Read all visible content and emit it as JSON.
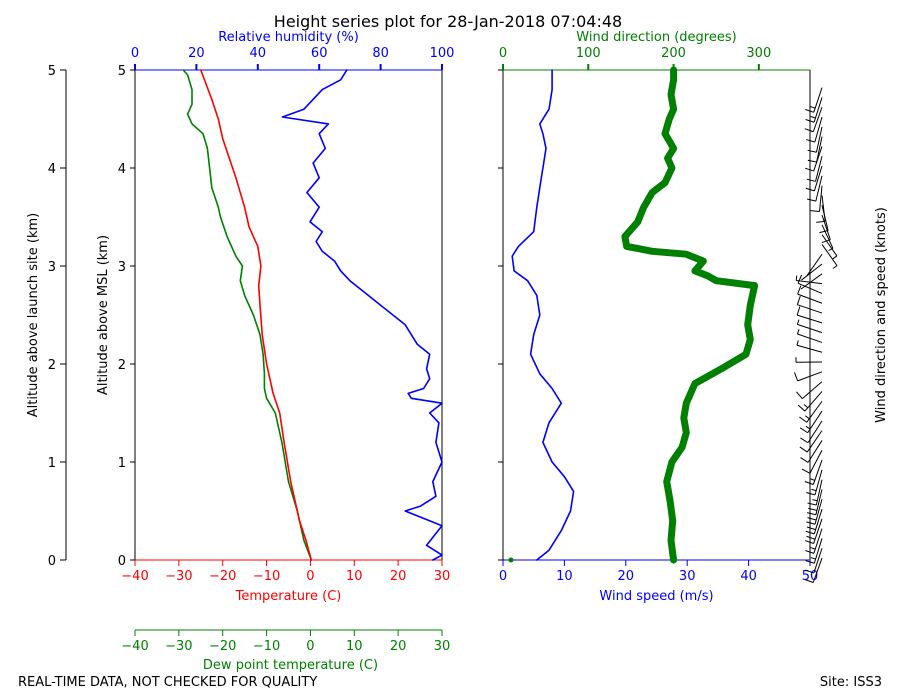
{
  "title": "Height series plot for 28-Jan-2018 07:04:48",
  "footer_left": "REAL-TIME DATA, NOT CHECKED FOR QUALITY",
  "footer_right": "Site: ISS3",
  "colors": {
    "temperature": "#ff0000",
    "dewpoint": "#008000",
    "rh": "#0000ff",
    "wspd": "#0000ff",
    "wdir": "#008000",
    "axis": "#000000"
  },
  "chart_data": [
    {
      "type": "line",
      "name": "thermo-panel",
      "ylabel_outer": "Altitude above launch site (km)",
      "ylabel": "Altitude above MSL (km)",
      "ylim": [
        0,
        5
      ],
      "yticks": [
        "0",
        "1",
        "2",
        "3",
        "4",
        "5"
      ],
      "bottom_axis": {
        "label": "Temperature (C)",
        "lim": [
          -40,
          30
        ],
        "ticks": [
          "−40",
          "−30",
          "−20",
          "−10",
          "0",
          "10",
          "20",
          "30"
        ]
      },
      "bottom_axis2": {
        "label": "Dew point temperature (C)",
        "lim": [
          -40,
          30
        ],
        "ticks": [
          "−40",
          "−30",
          "−20",
          "−10",
          "0",
          "10",
          "20",
          "30"
        ]
      },
      "top_axis": {
        "label": "Relative humidity (%)",
        "lim": [
          0,
          100
        ],
        "ticks": [
          "0",
          "20",
          "40",
          "60",
          "80",
          "100"
        ]
      },
      "series": [
        {
          "name": "Temperature",
          "axis": "bottom",
          "points": [
            [
              0.2,
              0
            ],
            [
              -1,
              0.2
            ],
            [
              -2.5,
              0.4
            ],
            [
              -4.5,
              0.8
            ],
            [
              -6,
              1.2
            ],
            [
              -7,
              1.5
            ],
            [
              -8.5,
              1.7
            ],
            [
              -10,
              2.0
            ],
            [
              -11,
              2.3
            ],
            [
              -11.5,
              2.6
            ],
            [
              -11.8,
              2.8
            ],
            [
              -11.3,
              3.0
            ],
            [
              -12,
              3.2
            ],
            [
              -14,
              3.4
            ],
            [
              -15,
              3.6
            ],
            [
              -17,
              3.9
            ],
            [
              -18.5,
              4.1
            ],
            [
              -20,
              4.3
            ],
            [
              -21,
              4.5
            ],
            [
              -22.5,
              4.7
            ],
            [
              -25,
              5.0
            ]
          ]
        },
        {
          "name": "Dew point",
          "axis": "bottom2",
          "points": [
            [
              0.2,
              0
            ],
            [
              -1.5,
              0.2
            ],
            [
              -3,
              0.5
            ],
            [
              -5,
              0.8
            ],
            [
              -6.5,
              1.2
            ],
            [
              -8,
              1.5
            ],
            [
              -10,
              1.65
            ],
            [
              -10.5,
              1.75
            ],
            [
              -10.5,
              1.9
            ],
            [
              -10.8,
              2.1
            ],
            [
              -11.5,
              2.3
            ],
            [
              -13,
              2.5
            ],
            [
              -15,
              2.7
            ],
            [
              -16,
              2.85
            ],
            [
              -15.5,
              3.0
            ],
            [
              -17,
              3.1
            ],
            [
              -19,
              3.3
            ],
            [
              -20.5,
              3.5
            ],
            [
              -21,
              3.6
            ],
            [
              -22.5,
              3.8
            ],
            [
              -23,
              4.0
            ],
            [
              -23.5,
              4.2
            ],
            [
              -24.5,
              4.35
            ],
            [
              -27,
              4.45
            ],
            [
              -28,
              4.55
            ],
            [
              -27,
              4.65
            ],
            [
              -27,
              4.8
            ],
            [
              -28,
              4.95
            ],
            [
              -29,
              5.0
            ]
          ]
        },
        {
          "name": "Relative humidity",
          "axis": "top",
          "points": [
            [
              97,
              0
            ],
            [
              100,
              0.05
            ],
            [
              95,
              0.15
            ],
            [
              100,
              0.35
            ],
            [
              92,
              0.45
            ],
            [
              88,
              0.5
            ],
            [
              93,
              0.55
            ],
            [
              98,
              0.65
            ],
            [
              97,
              0.8
            ],
            [
              100,
              1.0
            ],
            [
              98,
              1.2
            ],
            [
              99,
              1.4
            ],
            [
              96,
              1.5
            ],
            [
              100,
              1.6
            ],
            [
              90,
              1.65
            ],
            [
              89,
              1.7
            ],
            [
              94,
              1.75
            ],
            [
              96,
              1.85
            ],
            [
              95,
              1.95
            ],
            [
              96,
              2.1
            ],
            [
              92,
              2.2
            ],
            [
              88,
              2.4
            ],
            [
              80,
              2.6
            ],
            [
              76,
              2.7
            ],
            [
              70,
              2.85
            ],
            [
              67,
              2.95
            ],
            [
              65,
              3.05
            ],
            [
              61,
              3.15
            ],
            [
              59,
              3.25
            ],
            [
              61,
              3.35
            ],
            [
              57,
              3.45
            ],
            [
              60,
              3.6
            ],
            [
              56,
              3.75
            ],
            [
              60,
              3.9
            ],
            [
              58,
              4.05
            ],
            [
              62,
              4.2
            ],
            [
              60,
              4.35
            ],
            [
              63,
              4.45
            ],
            [
              48,
              4.52
            ],
            [
              55,
              4.6
            ],
            [
              58,
              4.7
            ],
            [
              61,
              4.8
            ],
            [
              67,
              4.9
            ],
            [
              69,
              5.0
            ]
          ]
        }
      ]
    },
    {
      "type": "line",
      "name": "wind-panel",
      "ylabel_right": "Wind direction and speed (knots)",
      "ylim": [
        0,
        5
      ],
      "bottom_axis": {
        "label": "Wind speed (m/s)",
        "lim": [
          0,
          50
        ],
        "ticks": [
          "0",
          "10",
          "20",
          "30",
          "40",
          "50"
        ]
      },
      "top_axis": {
        "label": "Wind direction (degrees)",
        "lim": [
          0,
          360
        ],
        "ticks": [
          "0",
          "100",
          "200",
          "300"
        ]
      },
      "series": [
        {
          "name": "Wind speed",
          "axis": "bottom",
          "points": [
            [
              5.5,
              0
            ],
            [
              7.5,
              0.1
            ],
            [
              9.5,
              0.3
            ],
            [
              11,
              0.5
            ],
            [
              11.5,
              0.7
            ],
            [
              10,
              0.85
            ],
            [
              8,
              1.0
            ],
            [
              6.5,
              1.2
            ],
            [
              7.5,
              1.4
            ],
            [
              9.5,
              1.6
            ],
            [
              8,
              1.75
            ],
            [
              6,
              1.9
            ],
            [
              4.5,
              2.1
            ],
            [
              5,
              2.3
            ],
            [
              6,
              2.5
            ],
            [
              5.5,
              2.7
            ],
            [
              4,
              2.85
            ],
            [
              1.8,
              2.95
            ],
            [
              1.5,
              3.1
            ],
            [
              2.5,
              3.2
            ],
            [
              5,
              3.35
            ],
            [
              5.5,
              3.6
            ],
            [
              6,
              3.8
            ],
            [
              6.5,
              4.0
            ],
            [
              7,
              4.2
            ],
            [
              6.5,
              4.35
            ],
            [
              6,
              4.45
            ],
            [
              7.5,
              4.6
            ],
            [
              8,
              4.8
            ],
            [
              8,
              5.0
            ]
          ]
        },
        {
          "name": "Wind direction",
          "axis": "top",
          "points": [
            [
              200,
              0
            ],
            [
              197,
              0.2
            ],
            [
              199,
              0.4
            ],
            [
              196,
              0.6
            ],
            [
              192,
              0.8
            ],
            [
              198,
              1.0
            ],
            [
              210,
              1.15
            ],
            [
              215,
              1.3
            ],
            [
              212,
              1.45
            ],
            [
              215,
              1.6
            ],
            [
              225,
              1.8
            ],
            [
              260,
              1.97
            ],
            [
              285,
              2.1
            ],
            [
              290,
              2.25
            ],
            [
              287,
              2.4
            ],
            [
              290,
              2.6
            ],
            [
              295,
              2.8
            ],
            [
              250,
              2.85
            ],
            [
              240,
              2.9
            ],
            [
              225,
              2.95
            ],
            [
              235,
              3.05
            ],
            [
              215,
              3.12
            ],
            [
              175,
              3.15
            ],
            [
              145,
              3.2
            ],
            [
              143,
              3.3
            ],
            [
              158,
              3.45
            ],
            [
              165,
              3.6
            ],
            [
              175,
              3.75
            ],
            [
              190,
              3.85
            ],
            [
              198,
              4.0
            ],
            [
              193,
              4.1
            ],
            [
              200,
              4.2
            ],
            [
              190,
              4.35
            ],
            [
              195,
              4.5
            ],
            [
              200,
              4.6
            ],
            [
              197,
              4.75
            ],
            [
              200,
              4.9
            ],
            [
              200,
              5.0
            ]
          ]
        }
      ]
    }
  ]
}
